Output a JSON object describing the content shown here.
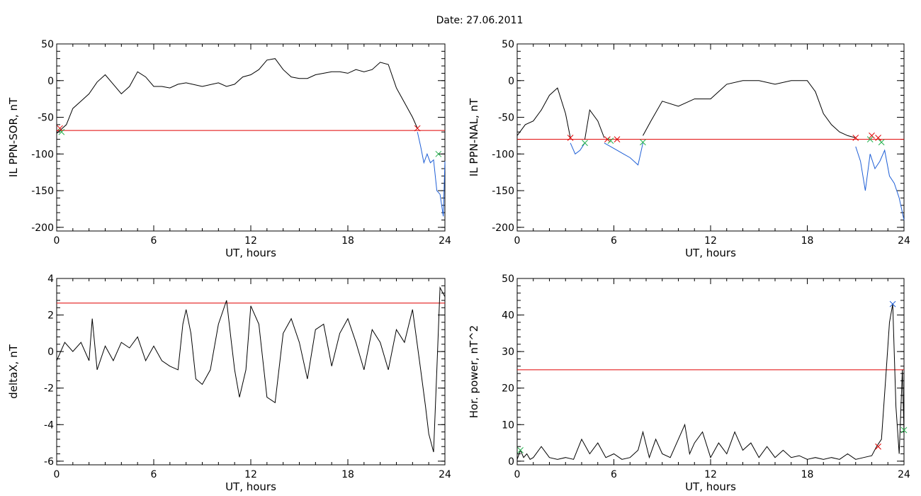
{
  "page_title": "Date:  27.06.2011",
  "chart_data": [
    {
      "type": "line",
      "xlabel": "UT, hours",
      "ylabel": "IL PPN-SOR, nT",
      "xlim": [
        0,
        24
      ],
      "ylim": [
        -205,
        50
      ],
      "x_ticks": [
        "0",
        "6",
        "12",
        "18",
        "24"
      ],
      "y_ticks": [
        "-200",
        "-150",
        "-100",
        "-50",
        "0",
        "50"
      ],
      "threshold": -68,
      "series": [
        {
          "x": [
            0,
            0.3,
            0.6,
            1.0,
            1.5,
            2.0,
            2.5,
            3.0,
            3.5,
            4.0,
            4.5,
            5.0,
            5.5,
            6.0,
            6.5,
            7.0,
            7.5,
            8.0,
            9.0,
            10.0,
            10.5,
            11.0,
            11.5,
            12.0,
            12.5,
            13.0,
            13.5,
            14.0,
            14.5,
            15.0,
            15.5,
            16.0,
            16.5,
            17.0,
            17.5,
            18.0,
            18.5,
            19.0,
            19.5,
            20.0,
            20.5,
            21.0,
            21.5,
            22.0,
            22.3
          ],
          "y": [
            -72,
            -66,
            -60,
            -38,
            -28,
            -18,
            -2,
            8,
            -5,
            -18,
            -8,
            12,
            5,
            -8,
            -8,
            -10,
            -5,
            -3,
            -8,
            -3,
            -8,
            -5,
            5,
            8,
            15,
            28,
            30,
            15,
            5,
            3,
            3,
            8,
            10,
            12,
            12,
            10,
            15,
            12,
            15,
            25,
            22,
            -10,
            -30,
            -50,
            -65
          ]
        },
        {
          "x": [
            22.3,
            22.5,
            22.7,
            22.9,
            23.1,
            23.3,
            23.5,
            23.7,
            23.9,
            24.0
          ],
          "y": [
            -70,
            -90,
            -112,
            -100,
            -112,
            -108,
            -150,
            -155,
            -185,
            -110
          ]
        }
      ],
      "marks_red": [
        [
          0.2,
          -65
        ],
        [
          22.3,
          -65
        ]
      ],
      "marks_green": [
        [
          0.3,
          -70
        ],
        [
          23.6,
          -100
        ]
      ]
    },
    {
      "type": "line",
      "xlabel": "UT, hours",
      "ylabel": "IL PPN-NAL, nT",
      "xlim": [
        0,
        24
      ],
      "ylim": [
        -205,
        50
      ],
      "x_ticks": [
        "0",
        "6",
        "12",
        "18",
        "24"
      ],
      "y_ticks": [
        "-200",
        "-150",
        "-100",
        "-50",
        "0",
        "50"
      ],
      "threshold": -80,
      "series": [
        {
          "x": [
            0,
            0.5,
            1.0,
            1.5,
            2.0,
            2.5,
            3.0,
            3.3
          ],
          "y": [
            -75,
            -60,
            -55,
            -40,
            -20,
            -10,
            -45,
            -78
          ]
        },
        {
          "x": [
            3.3,
            3.6,
            3.9,
            4.2
          ],
          "y": [
            -85,
            -100,
            -95,
            -85
          ]
        },
        {
          "x": [
            4.2,
            4.5,
            5.0,
            5.4
          ],
          "y": [
            -80,
            -40,
            -55,
            -78
          ]
        },
        {
          "x": [
            5.4,
            5.8,
            6.2,
            6.6,
            7.0,
            7.5,
            7.8
          ],
          "y": [
            -85,
            -90,
            -95,
            -100,
            -105,
            -115,
            -85
          ]
        },
        {
          "x": [
            7.8,
            8.3,
            9.0,
            10.0,
            11.0,
            12.0,
            12.5,
            13.0,
            14.0,
            15.0,
            16.0,
            17.0,
            18.0,
            18.5,
            19.0,
            19.5,
            20.0,
            20.5,
            21.0
          ],
          "y": [
            -75,
            -55,
            -28,
            -35,
            -25,
            -25,
            -15,
            -5,
            0,
            0,
            -5,
            0,
            0,
            -15,
            -45,
            -60,
            -70,
            -75,
            -78
          ]
        },
        {
          "x": [
            21.0,
            21.3,
            21.6,
            21.9,
            22.2,
            22.5,
            22.8,
            23.1,
            23.4,
            23.7,
            24.0
          ],
          "y": [
            -90,
            -110,
            -150,
            -100,
            -120,
            -110,
            -95,
            -130,
            -140,
            -160,
            -190
          ]
        }
      ],
      "marks_red": [
        [
          3.3,
          -78
        ],
        [
          5.6,
          -80
        ],
        [
          6.2,
          -80
        ],
        [
          21.0,
          -78
        ],
        [
          22.0,
          -75
        ],
        [
          22.4,
          -78
        ]
      ],
      "marks_green": [
        [
          4.2,
          -85
        ],
        [
          5.8,
          -82
        ],
        [
          7.8,
          -84
        ],
        [
          21.9,
          -80
        ],
        [
          22.6,
          -84
        ]
      ]
    },
    {
      "type": "line",
      "xlabel": "UT, hours",
      "ylabel": "deltaX, nT",
      "xlim": [
        0,
        24
      ],
      "ylim": [
        -6.2,
        4
      ],
      "x_ticks": [
        "0",
        "6",
        "12",
        "18",
        "24"
      ],
      "y_ticks": [
        "-6",
        "-4",
        "-2",
        "0",
        "2",
        "4"
      ],
      "threshold": 2.65,
      "series": [
        {
          "x": [
            0,
            0.5,
            1.0,
            1.5,
            2.0,
            2.2,
            2.5,
            3.0,
            3.5,
            4.0,
            4.5,
            5.0,
            5.5,
            6.0,
            6.5,
            7.0,
            7.5,
            7.8,
            8.0,
            8.3,
            8.6,
            9.0,
            9.5,
            10.0,
            10.5,
            10.8,
            11.0,
            11.3,
            11.7,
            12.0,
            12.5,
            13.0,
            13.5,
            14.0,
            14.5,
            15.0,
            15.5,
            16.0,
            16.5,
            17.0,
            17.5,
            18.0,
            18.5,
            19.0,
            19.5,
            20.0,
            20.5,
            21.0,
            21.5,
            22.0,
            22.5,
            22.8,
            23.0,
            23.3,
            23.5,
            23.7,
            24.0
          ],
          "y": [
            -0.5,
            0.5,
            0,
            0.5,
            -0.5,
            1.8,
            -1.0,
            0.3,
            -0.5,
            0.5,
            0.2,
            0.8,
            -0.5,
            0.3,
            -0.5,
            -0.8,
            -1.0,
            1.5,
            2.3,
            1.0,
            -1.5,
            -1.8,
            -1.0,
            1.5,
            2.8,
            0.5,
            -1.0,
            -2.5,
            -1.0,
            2.5,
            1.5,
            -2.5,
            -2.8,
            1.0,
            1.8,
            0.5,
            -1.5,
            1.2,
            1.5,
            -0.8,
            1.0,
            1.8,
            0.5,
            -1.0,
            1.2,
            0.5,
            -1.0,
            1.2,
            0.5,
            2.3,
            -1.0,
            -3.0,
            -4.5,
            -5.5,
            -1.0,
            3.5,
            3.0
          ]
        }
      ]
    },
    {
      "type": "line",
      "xlabel": "UT, hours",
      "ylabel": "Hor. power, nT^2",
      "xlim": [
        0,
        24
      ],
      "ylim": [
        -1,
        50
      ],
      "x_ticks": [
        "0",
        "6",
        "12",
        "18",
        "24"
      ],
      "y_ticks": [
        "0",
        "10",
        "20",
        "30",
        "40",
        "50"
      ],
      "threshold": 25,
      "series": [
        {
          "x": [
            0,
            0.2,
            0.4,
            0.6,
            0.8,
            1.0,
            1.5,
            2.0,
            2.5,
            3.0,
            3.5,
            4.0,
            4.5,
            5.0,
            5.5,
            6.0,
            6.5,
            7.0,
            7.5,
            7.8,
            8.2,
            8.6,
            9.0,
            9.5,
            10.0,
            10.4,
            10.7,
            11.0,
            11.5,
            12.0,
            12.5,
            13.0,
            13.5,
            14.0,
            14.5,
            15.0,
            15.5,
            16.0,
            16.5,
            17.0,
            17.5,
            18.0,
            18.5,
            19.0,
            19.5,
            20.0,
            20.5,
            21.0,
            21.5,
            22.0,
            22.3,
            22.6,
            22.9,
            23.1,
            23.3,
            23.5,
            23.7,
            23.9,
            24.0
          ],
          "y": [
            0.5,
            3.0,
            1.0,
            2.0,
            0.5,
            1.0,
            4.0,
            1.0,
            0.5,
            1.0,
            0.5,
            6.0,
            2.0,
            5.0,
            1.0,
            2.0,
            0.5,
            1.0,
            3.0,
            8.0,
            1.0,
            6.0,
            2.0,
            1.0,
            6.0,
            10.0,
            2.0,
            5.0,
            8.0,
            1.0,
            5.0,
            2.0,
            8.0,
            3.0,
            5.0,
            1.0,
            4.0,
            1.0,
            3.0,
            1.0,
            1.5,
            0.5,
            1.0,
            0.5,
            1.0,
            0.5,
            2.0,
            0.5,
            1.0,
            1.5,
            4.0,
            6.0,
            25.0,
            38.0,
            43.0,
            15.0,
            2.0,
            25.0,
            8.0
          ]
        }
      ],
      "marks_red": [
        [
          22.4,
          4.0
        ]
      ],
      "marks_blue": [
        [
          23.3,
          43.0
        ]
      ],
      "marks_green": [
        [
          0.2,
          3.0
        ],
        [
          24.0,
          8.5
        ]
      ]
    }
  ]
}
